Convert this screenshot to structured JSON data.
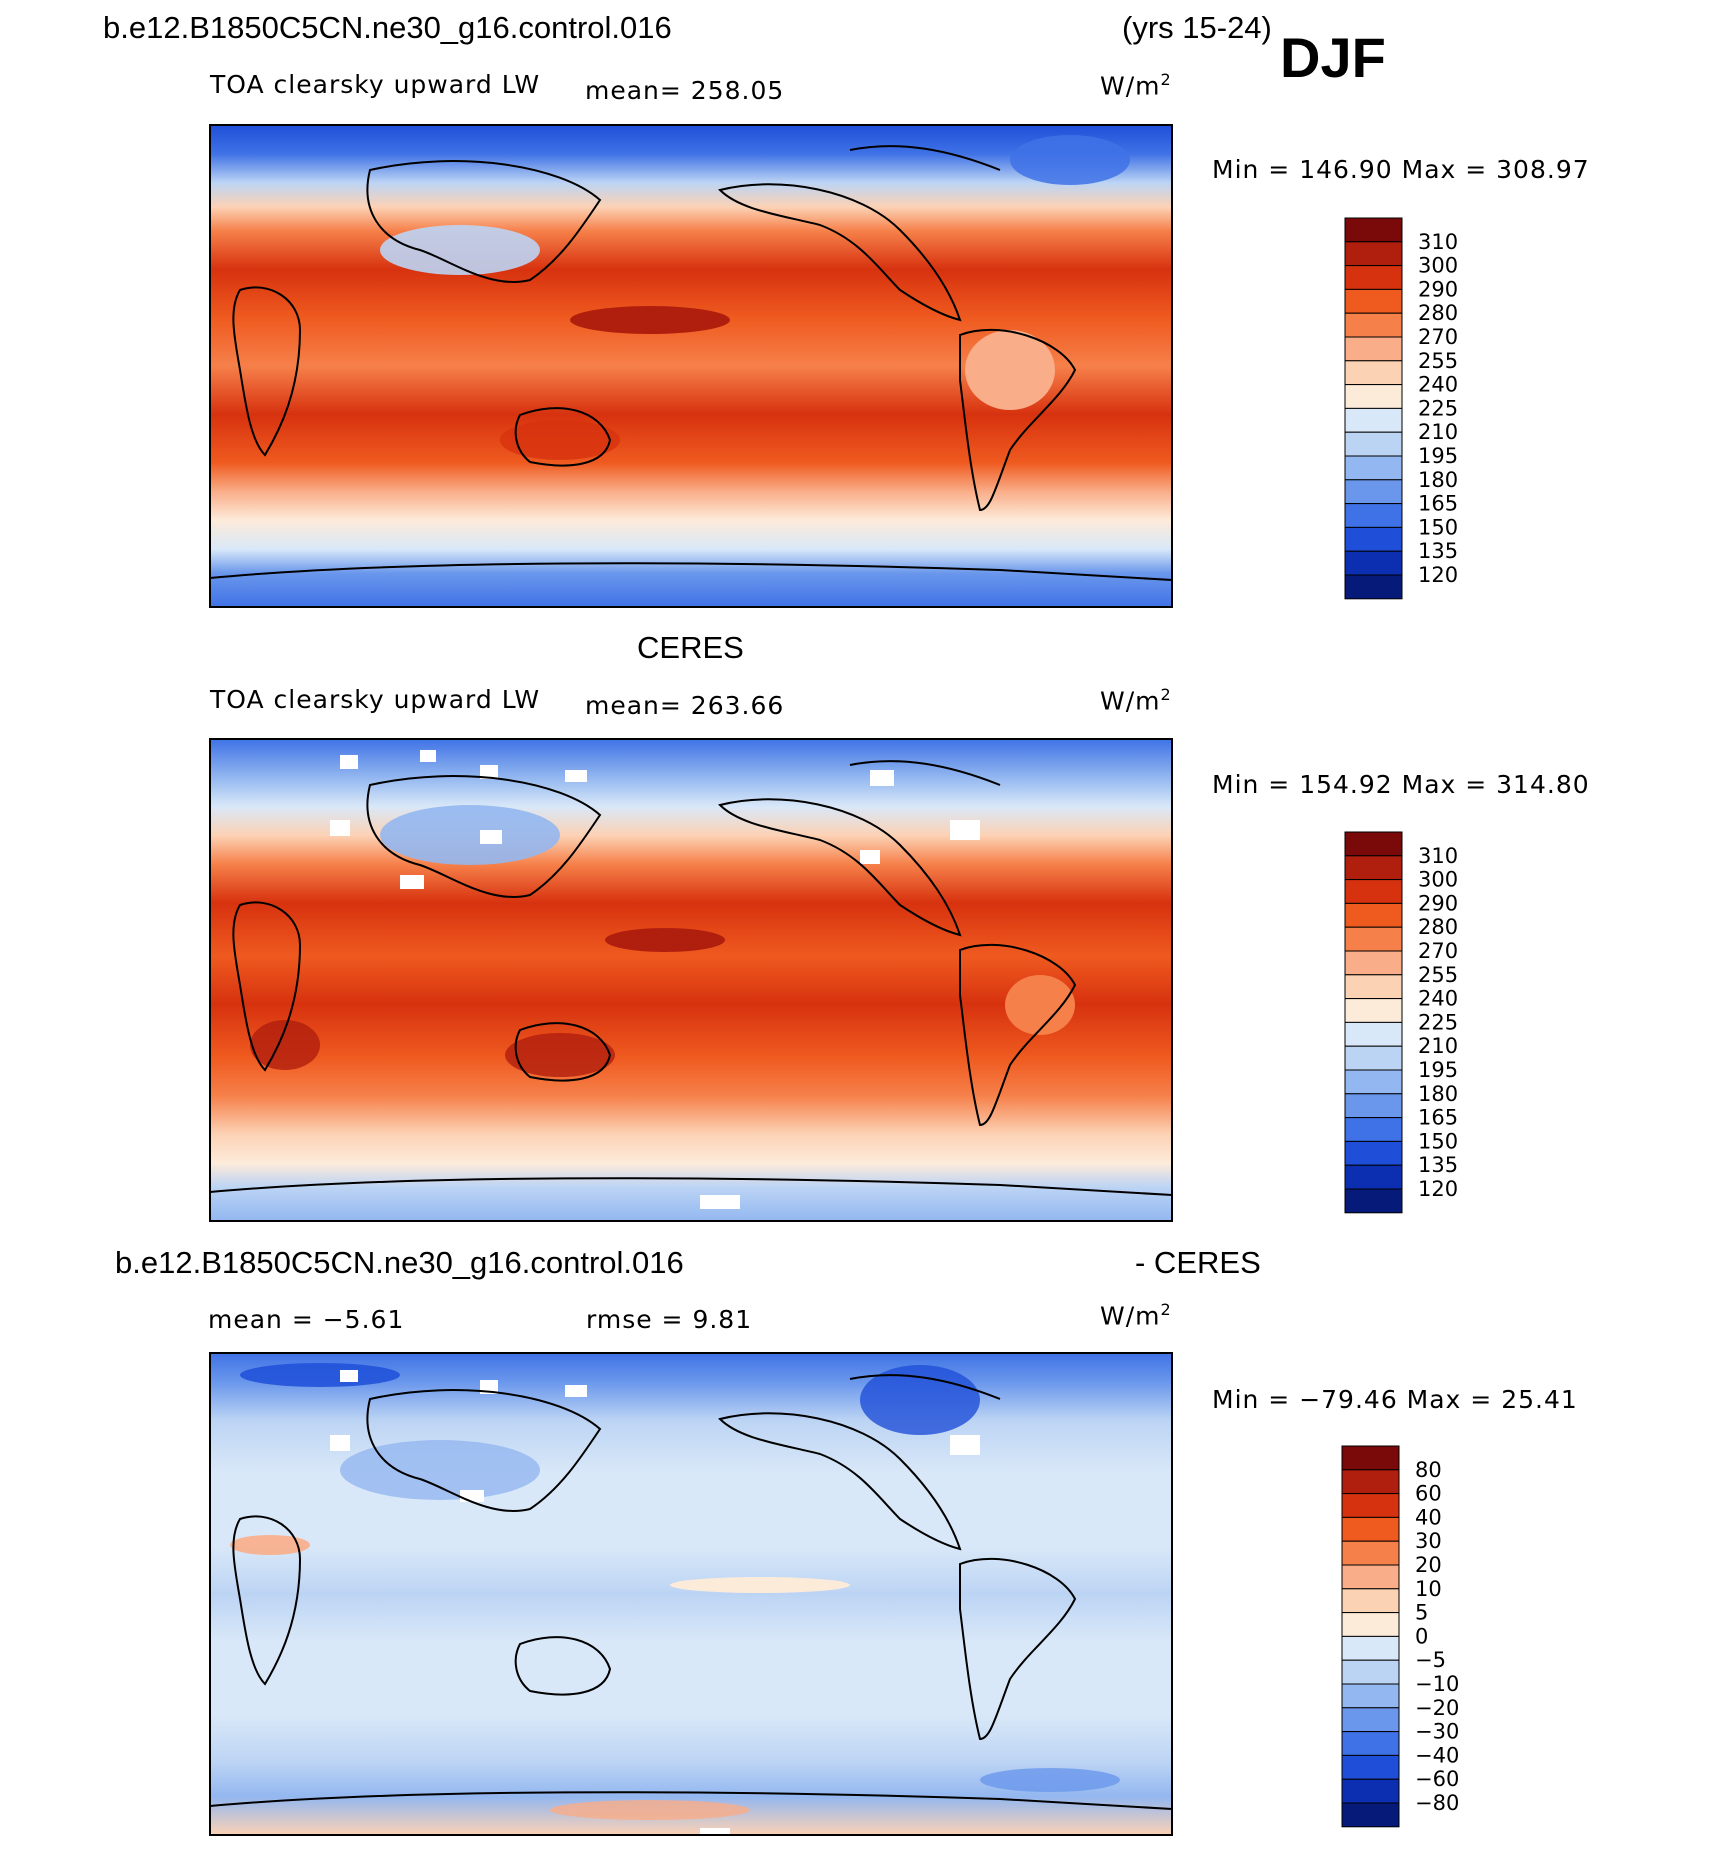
{
  "header": {
    "case_name": "b.e12.B1850C5CN.ne30_g16.control.016",
    "years": "(yrs 15-24)",
    "season": "DJF"
  },
  "panels": [
    {
      "id": "model",
      "heading": "",
      "variable": "TOA clearsky upward LW",
      "mean_label": "mean=  258.05",
      "units_base": "W/m",
      "units_exp": "2",
      "minmax": "Min  =  146.90  Max  =  308.97",
      "colorbar_labels": [
        "310",
        "300",
        "290",
        "280",
        "270",
        "255",
        "240",
        "225",
        "210",
        "195",
        "180",
        "165",
        "150",
        "135",
        "120"
      ]
    },
    {
      "id": "obs",
      "heading": "CERES",
      "variable": "TOA clearsky upward LW",
      "mean_label": "mean=  263.66",
      "units_base": "W/m",
      "units_exp": "2",
      "minmax": "Min  =  154.92  Max  =  314.80",
      "colorbar_labels": [
        "310",
        "300",
        "290",
        "280",
        "270",
        "255",
        "240",
        "225",
        "210",
        "195",
        "180",
        "165",
        "150",
        "135",
        "120"
      ]
    },
    {
      "id": "diff",
      "heading_left": "b.e12.B1850C5CN.ne30_g16.control.016",
      "heading_right": "- CERES",
      "mean_label": "mean  =   −5.61",
      "rmse_label": "rmse  =     9.81",
      "units_base": "W/m",
      "units_exp": "2",
      "minmax": "Min  =  −79.46  Max  =    25.41",
      "colorbar_labels": [
        "80",
        "60",
        "40",
        "30",
        "20",
        "10",
        "5",
        "0",
        "−5",
        "−10",
        "−20",
        "−30",
        "−40",
        "−60",
        "−80"
      ]
    }
  ],
  "colors": {
    "abs_scale": [
      "#7a0a0a",
      "#b01e0e",
      "#d7320f",
      "#ef5a1f",
      "#f6804a",
      "#f9ad88",
      "#fcd2b5",
      "#fdebda",
      "#d9e8f8",
      "#bcd4f4",
      "#93b7f0",
      "#6a97ec",
      "#3f72e6",
      "#1f4fd8",
      "#0b2fb0",
      "#061a7a"
    ],
    "diff_scale": [
      "#7a0a0a",
      "#b01e0e",
      "#d7320f",
      "#ef5a1f",
      "#f6804a",
      "#f9ad88",
      "#fcd2b5",
      "#fdebda",
      "#d9e8f8",
      "#bcd4f4",
      "#93b7f0",
      "#6a97ec",
      "#3f72e6",
      "#1f4fd8",
      "#0b2fb0",
      "#061a7a"
    ]
  }
}
